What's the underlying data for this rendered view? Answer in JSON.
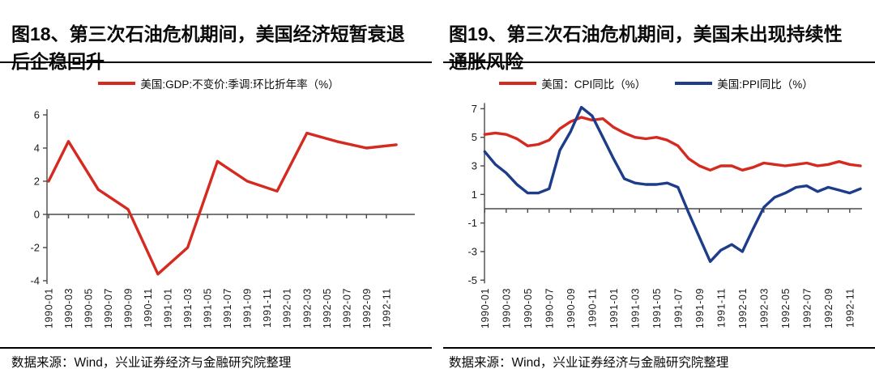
{
  "page": {
    "background": "#ffffff",
    "axis_color": "#4a4a4a",
    "text_color": "#0a0a0a"
  },
  "chart_data": [
    {
      "id": "fig18",
      "type": "line",
      "figure_label": "图18",
      "title": "图18、第三次石油危机期间，美国经济短暂衰退后企稳回升",
      "title_lines": [
        "图18、第三次石油危机期间，美国经济短暂衰退",
        "后企稳回升"
      ],
      "source_note": "数据来源：Wind，兴业证券经济与金融研究院整理",
      "legend_position": "top-center",
      "grid": false,
      "y_axis": {
        "ticks": [
          6,
          4,
          2,
          0,
          -2,
          -4
        ],
        "range": [
          -4.3,
          6.9
        ]
      },
      "x_axis": {
        "label_rotation": -90,
        "tick_labels": [
          "1990-01",
          "1990-03",
          "1990-05",
          "1990-07",
          "1990-09",
          "1990-11",
          "1991-01",
          "1991-03",
          "1991-05",
          "1991-07",
          "1991-09",
          "1991-11",
          "1992-01",
          "1992-03",
          "1992-05",
          "1992-07",
          "1992-09",
          "1992-11"
        ]
      },
      "series": [
        {
          "name": "美国:GDP:不变价:季调:环比折年率（%）",
          "color": "#D42A20",
          "points": [
            [
              "1990-01",
              2.0
            ],
            [
              "1990-03",
              4.4
            ],
            [
              "1990-06",
              1.5
            ],
            [
              "1990-09",
              0.3
            ],
            [
              "1990-12",
              -3.6
            ],
            [
              "1991-03",
              -2.0
            ],
            [
              "1991-06",
              3.2
            ],
            [
              "1991-09",
              2.0
            ],
            [
              "1991-12",
              1.4
            ],
            [
              "1992-03",
              4.9
            ],
            [
              "1992-06",
              4.4
            ],
            [
              "1992-09",
              4.0
            ],
            [
              "1992-12",
              4.2
            ]
          ]
        }
      ]
    },
    {
      "id": "fig19",
      "type": "line",
      "figure_label": "图19",
      "title": "图19、第三次石油危机期间，美国未出现持续性通胀风险",
      "title_lines": [
        "图19、第三次石油危机期间，美国未出现持续性",
        "通胀风险"
      ],
      "source_note": "数据来源：Wind，兴业证券经济与金融研究院整理",
      "legend_position": "top-center",
      "grid": false,
      "y_axis": {
        "ticks": [
          7,
          5,
          3,
          1,
          -1,
          -3,
          -5
        ],
        "range": [
          -5.4,
          7.3
        ]
      },
      "x_axis": {
        "label_rotation": -90,
        "tick_labels": [
          "1990-01",
          "1990-03",
          "1990-05",
          "1990-07",
          "1990-09",
          "1990-11",
          "1991-01",
          "1991-03",
          "1991-05",
          "1991-07",
          "1991-09",
          "1991-11",
          "1992-01",
          "1992-03",
          "1992-05",
          "1992-07",
          "1992-09",
          "1992-11"
        ]
      },
      "series": [
        {
          "name": "美国：CPI同比（%）",
          "color": "#D42A20",
          "points": [
            [
              "1990-01",
              5.2
            ],
            [
              "1990-02",
              5.3
            ],
            [
              "1990-03",
              5.2
            ],
            [
              "1990-04",
              4.9
            ],
            [
              "1990-05",
              4.4
            ],
            [
              "1990-06",
              4.5
            ],
            [
              "1990-07",
              4.8
            ],
            [
              "1990-08",
              5.6
            ],
            [
              "1990-09",
              6.1
            ],
            [
              "1990-10",
              6.4
            ],
            [
              "1990-11",
              6.2
            ],
            [
              "1990-12",
              6.3
            ],
            [
              "1991-01",
              5.7
            ],
            [
              "1991-02",
              5.3
            ],
            [
              "1991-03",
              5.0
            ],
            [
              "1991-04",
              4.9
            ],
            [
              "1991-05",
              5.0
            ],
            [
              "1991-06",
              4.8
            ],
            [
              "1991-07",
              4.4
            ],
            [
              "1991-08",
              3.5
            ],
            [
              "1991-09",
              3.0
            ],
            [
              "1991-10",
              2.7
            ],
            [
              "1991-11",
              3.0
            ],
            [
              "1991-12",
              3.0
            ],
            [
              "1992-01",
              2.7
            ],
            [
              "1992-02",
              2.9
            ],
            [
              "1992-03",
              3.2
            ],
            [
              "1992-04",
              3.1
            ],
            [
              "1992-05",
              3.0
            ],
            [
              "1992-06",
              3.1
            ],
            [
              "1992-07",
              3.2
            ],
            [
              "1992-08",
              3.0
            ],
            [
              "1992-09",
              3.1
            ],
            [
              "1992-10",
              3.3
            ],
            [
              "1992-11",
              3.1
            ],
            [
              "1992-12",
              3.0
            ]
          ]
        },
        {
          "name": "美国:PPI同比（%）",
          "color": "#1D3C8A",
          "points": [
            [
              "1990-01",
              4.0
            ],
            [
              "1990-02",
              3.1
            ],
            [
              "1990-03",
              2.5
            ],
            [
              "1990-04",
              1.7
            ],
            [
              "1990-05",
              1.1
            ],
            [
              "1990-06",
              1.1
            ],
            [
              "1990-07",
              1.4
            ],
            [
              "1990-08",
              4.1
            ],
            [
              "1990-09",
              5.4
            ],
            [
              "1990-10",
              7.1
            ],
            [
              "1990-11",
              6.5
            ],
            [
              "1990-12",
              5.0
            ],
            [
              "1991-01",
              3.5
            ],
            [
              "1991-02",
              2.1
            ],
            [
              "1991-03",
              1.8
            ],
            [
              "1991-04",
              1.7
            ],
            [
              "1991-05",
              1.7
            ],
            [
              "1991-06",
              1.8
            ],
            [
              "1991-07",
              1.5
            ],
            [
              "1991-08",
              -0.3
            ],
            [
              "1991-09",
              -2.0
            ],
            [
              "1991-10",
              -3.7
            ],
            [
              "1991-11",
              -2.9
            ],
            [
              "1991-12",
              -2.5
            ],
            [
              "1992-01",
              -3.0
            ],
            [
              "1992-02",
              -1.4
            ],
            [
              "1992-03",
              0.1
            ],
            [
              "1992-04",
              0.8
            ],
            [
              "1992-05",
              1.1
            ],
            [
              "1992-06",
              1.5
            ],
            [
              "1992-07",
              1.6
            ],
            [
              "1992-08",
              1.2
            ],
            [
              "1992-09",
              1.5
            ],
            [
              "1992-10",
              1.3
            ],
            [
              "1992-11",
              1.1
            ],
            [
              "1992-12",
              1.4
            ]
          ]
        }
      ]
    }
  ]
}
